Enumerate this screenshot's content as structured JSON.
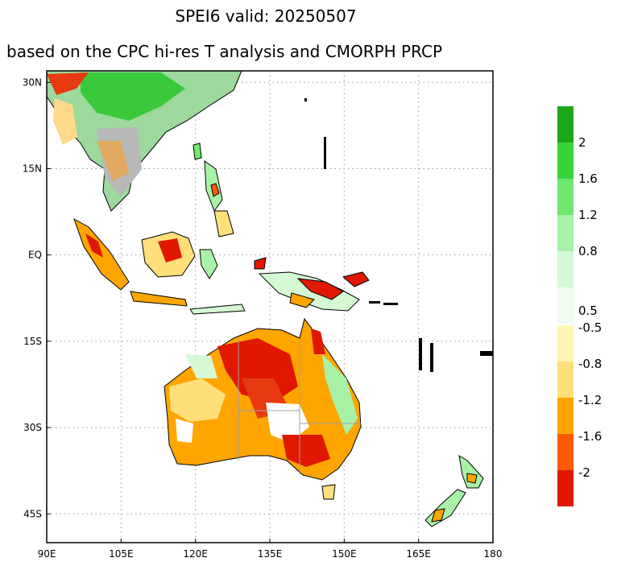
{
  "title": "SPEI6   valid: 20250507",
  "subtitle": "based on the CPC hi-res T analysis and CMORPH PRCP",
  "map": {
    "lon_range": [
      90,
      180
    ],
    "lat_range": [
      -50,
      32
    ],
    "x_ticks": [
      "90E",
      "105E",
      "120E",
      "135E",
      "150E",
      "165E",
      "180"
    ],
    "y_ticks": [
      "30N",
      "15N",
      "EQ",
      "15S",
      "30S",
      "45S"
    ]
  },
  "colorbar": {
    "wet": [
      {
        "label": "",
        "color": "#1aa71a"
      },
      {
        "label": "2",
        "color": "#3ad23a"
      },
      {
        "label": "1.6",
        "color": "#6fe86f"
      },
      {
        "label": "1.2",
        "color": "#a8f2a8"
      },
      {
        "label": "0.8",
        "color": "#d4f9d4"
      },
      {
        "label": "0.5",
        "color": "#eefdee"
      }
    ],
    "dry": [
      {
        "label": "-0.5",
        "color": "#fff6b4"
      },
      {
        "label": "-0.8",
        "color": "#ffdf7a"
      },
      {
        "label": "-1.2",
        "color": "#ffa500"
      },
      {
        "label": "-1.6",
        "color": "#ff5a00"
      },
      {
        "label": "-2",
        "color": "#e01800"
      }
    ]
  }
}
